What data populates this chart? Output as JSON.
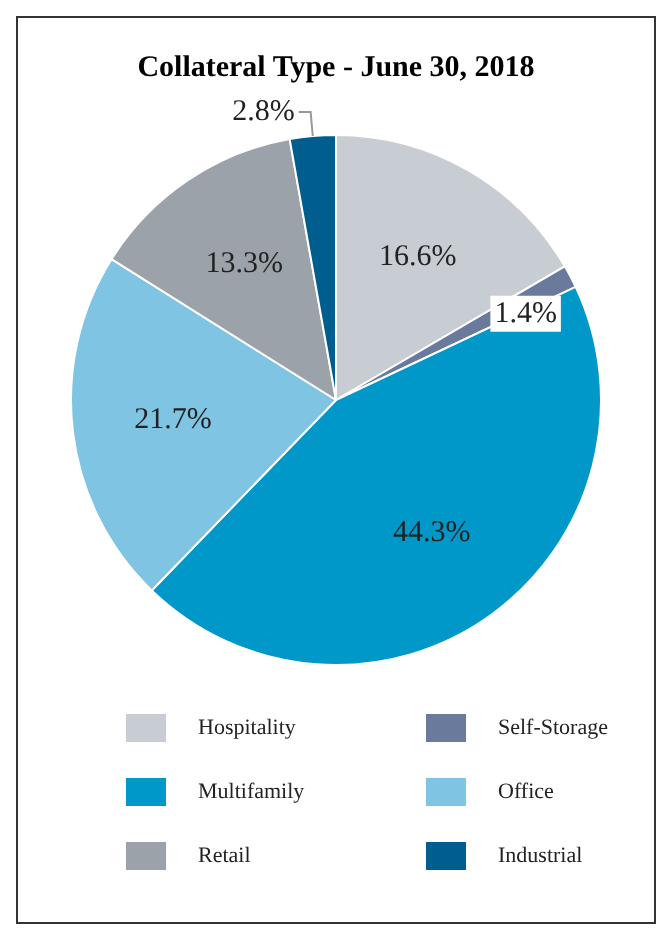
{
  "chart_data": {
    "type": "pie",
    "title": "Collateral Type - June 30, 2018",
    "categories": [
      "Hospitality",
      "Self-Storage",
      "Multifamily",
      "Office",
      "Retail",
      "Industrial"
    ],
    "values": [
      16.6,
      1.4,
      44.3,
      21.7,
      13.3,
      2.8
    ],
    "value_labels": [
      "16.6%",
      "1.4%",
      "44.3%",
      "21.7%",
      "13.3%",
      "2.8%"
    ],
    "colors": [
      "#c8cdd3",
      "#6a7a9c",
      "#0097c9",
      "#7fc4e2",
      "#9ca2aa",
      "#005e8e"
    ],
    "legend": "bottom"
  }
}
